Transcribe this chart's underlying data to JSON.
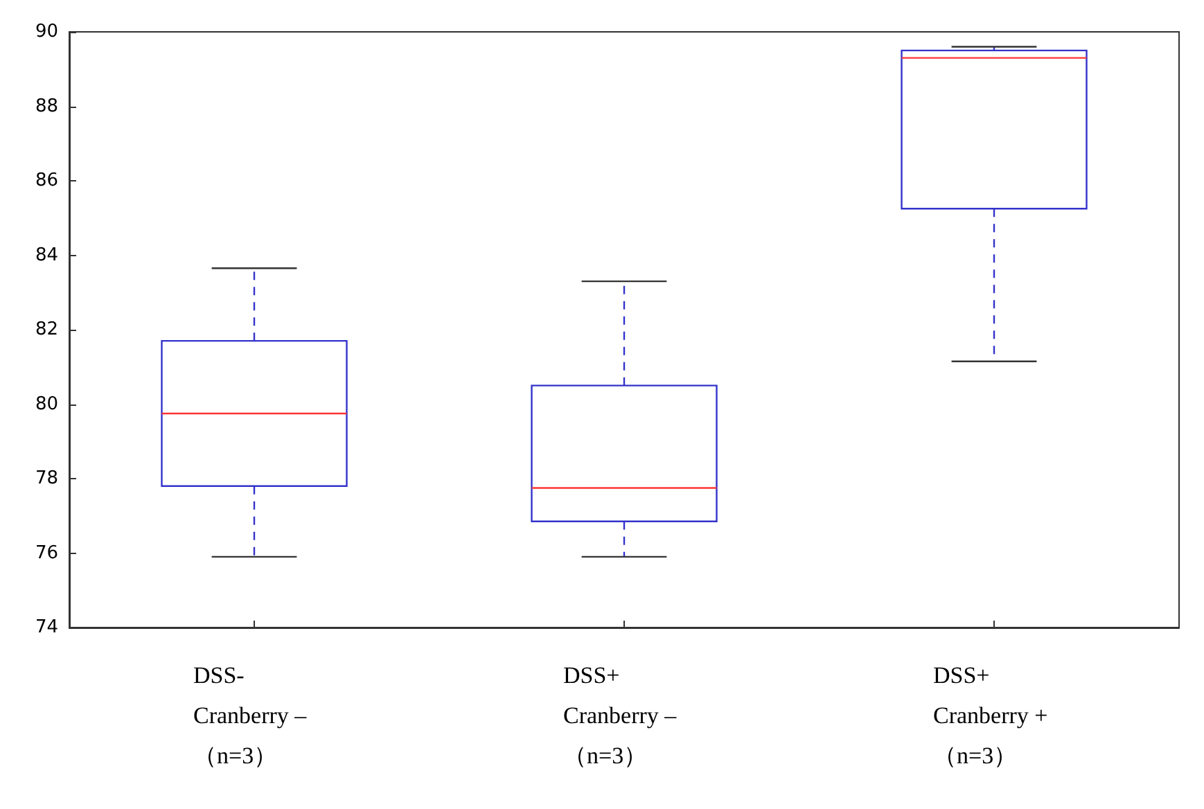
{
  "chart_data": {
    "type": "box",
    "categories": [
      "DSS-\nCranberry –\n（n=3）",
      "DSS+\nCranberry –\n（n=3）",
      "DSS+\nCranberry +\n（n=3）"
    ],
    "boxes": [
      {
        "low": 75.9,
        "q1": 77.8,
        "median": 79.75,
        "q3": 81.7,
        "high": 83.65
      },
      {
        "low": 75.9,
        "q1": 76.85,
        "median": 77.75,
        "q3": 80.5,
        "high": 83.3
      },
      {
        "low": 81.15,
        "q1": 85.25,
        "median": 89.3,
        "q3": 89.5,
        "high": 89.6
      }
    ],
    "color": "#3333cc",
    "ylim": [
      74,
      90
    ],
    "yticks": [
      74,
      76,
      78,
      80,
      82,
      84,
      86,
      88,
      90
    ],
    "line_style": "dashed"
  }
}
